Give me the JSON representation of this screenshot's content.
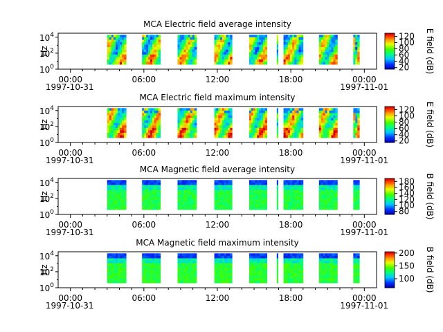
{
  "figure": {
    "time_ticks": [
      "00:00",
      "06:00",
      "12:00",
      "18:00",
      "00:00"
    ],
    "start_date": "1997-10-31",
    "end_date": "1997-11-01",
    "ylabel": "Hz",
    "y_ticks": [
      {
        "base": "10",
        "exp": "0"
      },
      {
        "base": "10",
        "exp": "2"
      },
      {
        "base": "10",
        "exp": "4"
      }
    ]
  },
  "chart_data": [
    {
      "type": "heatmap",
      "title": "MCA  Electric field average intensity",
      "ylabel": "Hz",
      "xlim_hours": [
        -1,
        25
      ],
      "ylim_log10": [
        0,
        4.5
      ],
      "colorbar": {
        "label": "E field (dB)",
        "ticks": [
          "120",
          "100",
          "80",
          "60",
          "40",
          "20"
        ],
        "tick_values": [
          120,
          100,
          80,
          60,
          40,
          20
        ],
        "range": [
          15,
          130
        ]
      },
      "data_intervals_hours": [
        [
          3.0,
          4.55
        ],
        [
          5.85,
          7.35
        ],
        [
          8.75,
          10.3
        ],
        [
          11.75,
          13.2
        ],
        [
          14.6,
          16.05
        ],
        [
          16.85,
          16.95
        ],
        [
          17.4,
          19.0
        ],
        [
          20.3,
          21.8
        ],
        [
          23.1,
          23.6
        ]
      ],
      "value_range_db": [
        15,
        125
      ],
      "colormap": "rainbow"
    },
    {
      "type": "heatmap",
      "title": "MCA  Electric field maximum intensity",
      "ylabel": "Hz",
      "xlim_hours": [
        -1,
        25
      ],
      "ylim_log10": [
        0,
        4.5
      ],
      "colorbar": {
        "label": "E field (dB)",
        "ticks": [
          "120",
          "100",
          "80",
          "60",
          "40",
          "20"
        ],
        "tick_values": [
          120,
          100,
          80,
          60,
          40,
          20
        ],
        "range": [
          15,
          130
        ]
      },
      "data_intervals_hours": [
        [
          3.0,
          4.55
        ],
        [
          5.85,
          7.35
        ],
        [
          8.75,
          10.3
        ],
        [
          11.75,
          13.2
        ],
        [
          14.6,
          16.05
        ],
        [
          16.85,
          16.95
        ],
        [
          17.4,
          19.0
        ],
        [
          20.3,
          21.8
        ],
        [
          23.1,
          23.6
        ]
      ],
      "value_range_db": [
        15,
        130
      ],
      "colormap": "rainbow"
    },
    {
      "type": "heatmap",
      "title": "MCA  Magnetic field average intensity",
      "ylabel": "Hz",
      "xlim_hours": [
        -1,
        25
      ],
      "ylim_log10": [
        0,
        4.5
      ],
      "colorbar": {
        "label": "B field (dB)",
        "ticks": [
          "180",
          "160",
          "140",
          "120",
          "100",
          "80"
        ],
        "tick_values": [
          180,
          160,
          140,
          120,
          100,
          80
        ],
        "range": [
          70,
          190
        ]
      },
      "data_intervals_hours": [
        [
          3.0,
          4.55
        ],
        [
          5.85,
          7.35
        ],
        [
          8.75,
          10.3
        ],
        [
          11.75,
          13.2
        ],
        [
          14.6,
          16.05
        ],
        [
          16.85,
          16.95
        ],
        [
          17.4,
          19.0
        ],
        [
          20.3,
          21.8
        ],
        [
          23.1,
          23.6
        ]
      ],
      "value_range_db": [
        75,
        130
      ],
      "colormap": "rainbow"
    },
    {
      "type": "heatmap",
      "title": "MCA  Magnetic field maximum intensity",
      "ylabel": "Hz",
      "xlim_hours": [
        -1,
        25
      ],
      "ylim_log10": [
        0,
        4.5
      ],
      "colorbar": {
        "label": "B field (dB)",
        "ticks": [
          "200",
          "150",
          "100"
        ],
        "tick_values": [
          200,
          150,
          100
        ],
        "range": [
          65,
          205
        ]
      },
      "data_intervals_hours": [
        [
          3.0,
          4.55
        ],
        [
          5.85,
          7.35
        ],
        [
          8.75,
          10.3
        ],
        [
          11.75,
          13.2
        ],
        [
          14.6,
          16.05
        ],
        [
          16.85,
          16.95
        ],
        [
          17.4,
          19.0
        ],
        [
          20.3,
          21.8
        ],
        [
          23.1,
          23.6
        ]
      ],
      "value_range_db": [
        75,
        140
      ],
      "colormap": "rainbow"
    }
  ]
}
